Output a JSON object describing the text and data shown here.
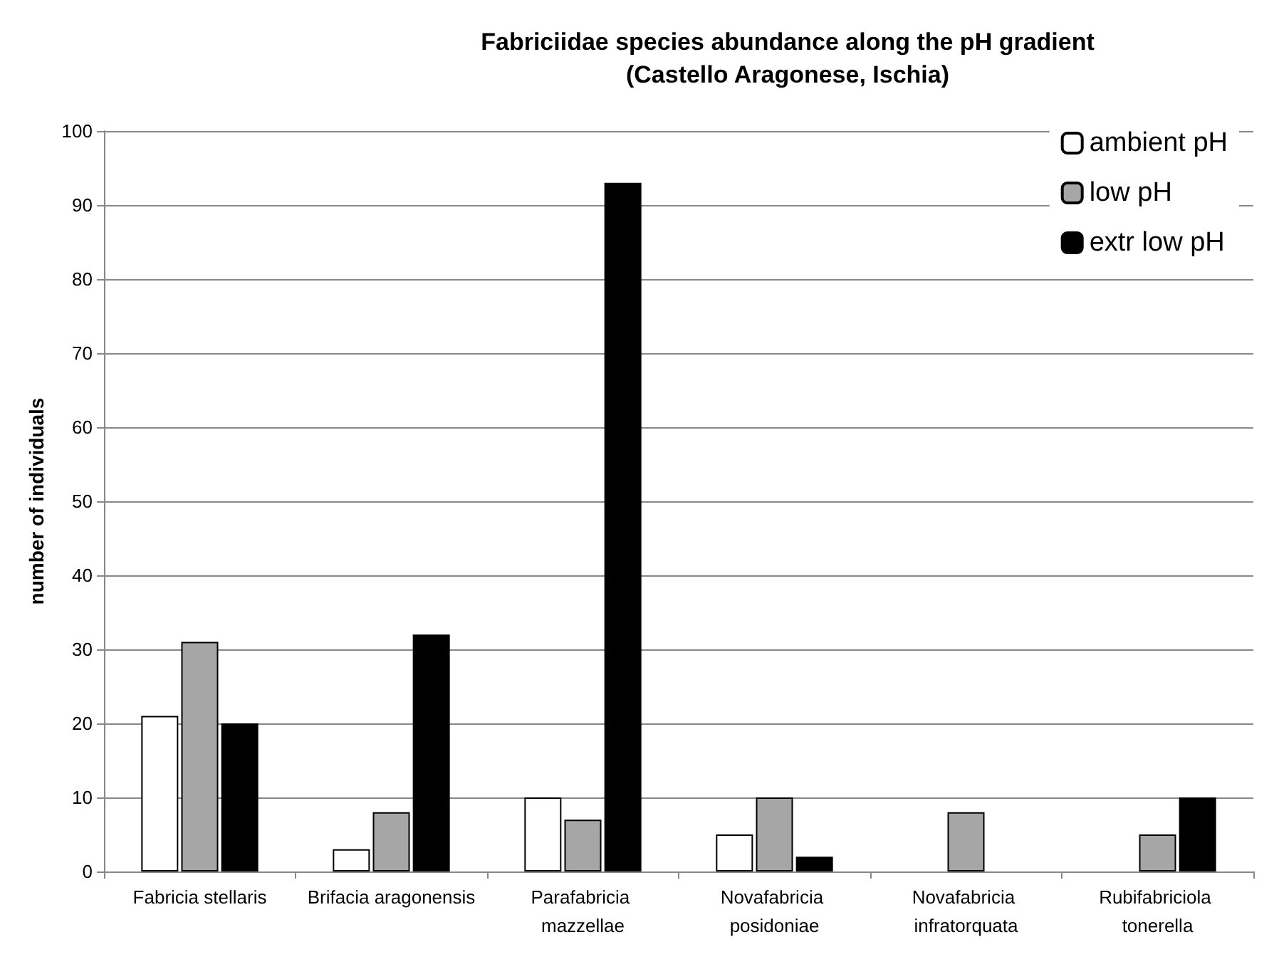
{
  "chart_data": {
    "type": "bar",
    "title": "Fabriciidae species abundance along the pH gradient",
    "subtitle": "(Castello Aragonese, Ischia)",
    "ylabel": "number of individuals",
    "categories": [
      "Fabricia stellaris",
      "Brifacia aragonensis",
      "Parafabricia mazzellae",
      "Novafabricia posidoniae",
      "Novafabricia infratorquata",
      "Rubifabriciola tonerella"
    ],
    "series": [
      {
        "name": "ambient pH",
        "color": "#ffffff",
        "values": [
          21,
          3,
          10,
          5,
          null,
          null
        ]
      },
      {
        "name": "low pH",
        "color": "#a6a6a6",
        "values": [
          31,
          8,
          7,
          10,
          8,
          5
        ]
      },
      {
        "name": "extr low pH",
        "color": "#000000",
        "values": [
          20,
          32,
          93,
          2,
          null,
          10
        ]
      }
    ],
    "ylim": [
      0,
      100
    ],
    "yticks": [
      0,
      10,
      20,
      30,
      40,
      50,
      60,
      70,
      80,
      90,
      100
    ],
    "grid": "y",
    "legend": "top right"
  }
}
